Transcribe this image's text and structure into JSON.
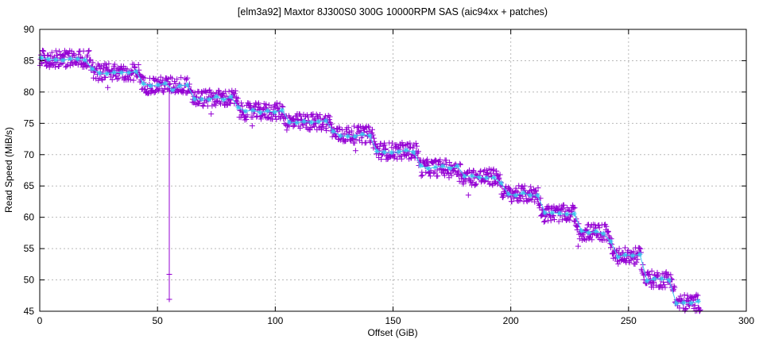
{
  "chart_data": {
    "type": "scatter",
    "title": "[elm3a92] Maxtor 8J300S0 300G 10000RPM SAS (aic94xx + patches)",
    "xlabel": "Offset (GiB)",
    "ylabel": "Read Speed (MiB/s)",
    "xlim": [
      0,
      300
    ],
    "ylim": [
      45,
      90
    ],
    "x_ticks": [
      0,
      50,
      100,
      150,
      200,
      250,
      300
    ],
    "y_ticks": [
      45,
      50,
      55,
      60,
      65,
      70,
      75,
      80,
      85,
      90
    ],
    "grid": true,
    "legend": "none",
    "series": [
      {
        "name": "raw-read-samples",
        "marker": "plus",
        "color": "#9400d3",
        "noise_band": 1.35
      },
      {
        "name": "zone-average-line",
        "marker": "asterisk",
        "color": "#3ec6ee",
        "line": true
      }
    ],
    "steps": [
      {
        "from": 0,
        "to": 22,
        "speed": 85.3
      },
      {
        "from": 22,
        "to": 43,
        "speed": 83.2
      },
      {
        "from": 43,
        "to": 63.5,
        "speed": 81.1
      },
      {
        "from": 63.5,
        "to": 84,
        "speed": 79.0
      },
      {
        "from": 84,
        "to": 104,
        "speed": 76.9
      },
      {
        "from": 104,
        "to": 124,
        "speed": 75.2
      },
      {
        "from": 124,
        "to": 142,
        "speed": 73.2
      },
      {
        "from": 142,
        "to": 161,
        "speed": 70.6
      },
      {
        "from": 161,
        "to": 179,
        "speed": 67.9
      },
      {
        "from": 179,
        "to": 196,
        "speed": 66.4
      },
      {
        "from": 196,
        "to": 212.5,
        "speed": 63.7
      },
      {
        "from": 212.5,
        "to": 228,
        "speed": 60.6
      },
      {
        "from": 228,
        "to": 242.5,
        "speed": 57.6
      },
      {
        "from": 242.5,
        "to": 256,
        "speed": 53.8
      },
      {
        "from": 256,
        "to": 269.3,
        "speed": 50.1
      },
      {
        "from": 269.3,
        "to": 280.5,
        "speed": 46.35
      }
    ],
    "spike": {
      "offset": 55,
      "from_speed": 81.1,
      "to_speed": 46.9,
      "outlier_markers": [
        50.9,
        46.9
      ],
      "avg_line_dip": 80.3
    },
    "colors": {
      "background": "#ffffff",
      "border": "#000000",
      "grid": "#b9b9b9",
      "points": "#9400d3",
      "average": "#3ec6ee",
      "text": "#000000"
    }
  }
}
